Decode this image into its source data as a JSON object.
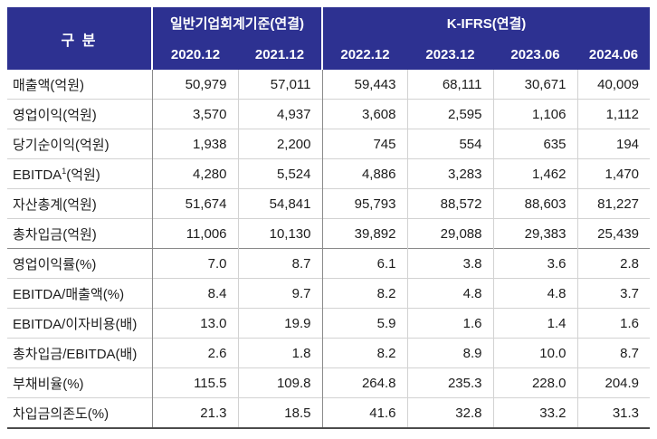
{
  "table": {
    "header": {
      "corner": "구 분",
      "groups": [
        {
          "label": "일반기업회계기준(연결)",
          "cols": [
            "2020.12",
            "2021.12"
          ]
        },
        {
          "label": "K-IFRS(연결)",
          "cols": [
            "2022.12",
            "2023.12",
            "2023.06",
            "2024.06"
          ]
        }
      ]
    },
    "rows": [
      {
        "label": "매출액(억원)",
        "values": [
          "50,979",
          "57,011",
          "59,443",
          "68,111",
          "30,671",
          "40,009"
        ]
      },
      {
        "label": "영업이익(억원)",
        "values": [
          "3,570",
          "4,937",
          "3,608",
          "2,595",
          "1,106",
          "1,112"
        ]
      },
      {
        "label": "당기순이익(억원)",
        "values": [
          "1,938",
          "2,200",
          "745",
          "554",
          "635",
          "194"
        ]
      },
      {
        "label": "EBITDA",
        "label_sup": "1",
        "label_tail": "(억원)",
        "values": [
          "4,280",
          "5,524",
          "4,886",
          "3,283",
          "1,462",
          "1,470"
        ]
      },
      {
        "label": "자산총계(억원)",
        "values": [
          "51,674",
          "54,841",
          "95,793",
          "88,572",
          "88,603",
          "81,227"
        ]
      },
      {
        "label": "총차입금(억원)",
        "group_end": true,
        "values": [
          "11,006",
          "10,130",
          "39,892",
          "29,088",
          "29,383",
          "25,439"
        ]
      },
      {
        "label": "영업이익률(%)",
        "values": [
          "7.0",
          "8.7",
          "6.1",
          "3.8",
          "3.6",
          "2.8"
        ]
      },
      {
        "label": "EBITDA/매출액(%)",
        "values": [
          "8.4",
          "9.7",
          "8.2",
          "4.8",
          "4.8",
          "3.7"
        ]
      },
      {
        "label": "EBITDA/이자비용(배)",
        "values": [
          "13.0",
          "19.9",
          "5.9",
          "1.6",
          "1.4",
          "1.6"
        ]
      },
      {
        "label": "총차입금/EBITDA(배)",
        "values": [
          "2.6",
          "1.8",
          "8.2",
          "8.9",
          "10.0",
          "8.7"
        ]
      },
      {
        "label": "부채비율(%)",
        "values": [
          "115.5",
          "109.8",
          "264.8",
          "235.3",
          "228.0",
          "204.9"
        ]
      },
      {
        "label": "차입금의존도(%)",
        "values": [
          "21.3",
          "18.5",
          "41.6",
          "32.8",
          "33.2",
          "31.3"
        ]
      }
    ],
    "colors": {
      "page_bg": "#ffffff",
      "header_bg": "#2d3191",
      "header_text": "#ffffff",
      "body_text": "#1c1c1c",
      "grid_light": "#d2d2d2",
      "grid_dark": "#8a8a8a",
      "bottom_border": "#4c4c4c"
    }
  }
}
